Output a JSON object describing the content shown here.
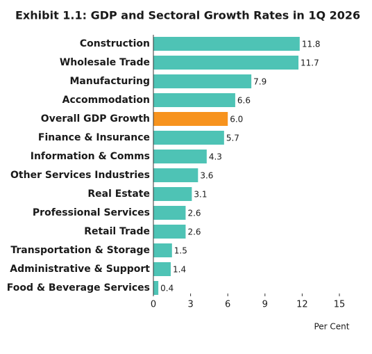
{
  "chart_data": {
    "type": "barh",
    "title": "Exhibit 1.1: GDP and Sectoral Growth Rates in 1Q 2026",
    "x_label": "Per Cent",
    "categories": [
      "Construction",
      "Wholesale Trade",
      "Manufacturing",
      "Accommodation",
      "Overall GDP Growth",
      "Finance & Insurance",
      "Information & Comms",
      "Other Services Industries",
      "Real Estate",
      "Professional Services",
      "Retail Trade",
      "Transportation & Storage",
      "Administrative & Support",
      "Food & Beverage Services"
    ],
    "values": [
      11.8,
      11.7,
      7.9,
      6.6,
      6.0,
      5.7,
      4.3,
      3.6,
      3.1,
      2.6,
      2.6,
      1.5,
      1.4,
      0.4
    ],
    "value_labels": [
      "11.8",
      "11.7",
      "7.9",
      "6.6",
      "6.0",
      "5.7",
      "4.3",
      "3.6",
      "3.1",
      "2.6",
      "2.6",
      "1.5",
      "1.4",
      "0.4"
    ],
    "colors": [
      "#4ec3b5",
      "#4ec3b5",
      "#4ec3b5",
      "#4ec3b5",
      "#f7931e",
      "#4ec3b5",
      "#4ec3b5",
      "#4ec3b5",
      "#4ec3b5",
      "#4ec3b5",
      "#4ec3b5",
      "#4ec3b5",
      "#4ec3b5",
      "#4ec3b5"
    ],
    "xlim": [
      0,
      15
    ],
    "xticks": [
      0,
      3,
      6,
      9,
      12,
      15
    ]
  }
}
